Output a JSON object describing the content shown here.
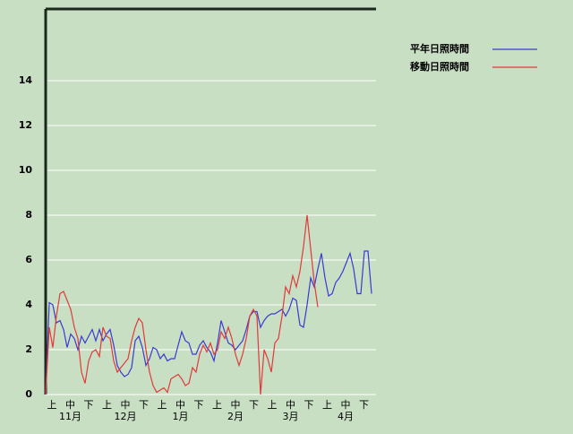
{
  "chart_data": {
    "type": "line",
    "xtick_labels": [
      "上",
      "中",
      "下",
      "上",
      "中",
      "下",
      "上",
      "中",
      "下",
      "上",
      "中",
      "下",
      "上",
      "中",
      "下",
      "上",
      "中",
      "下"
    ],
    "month_labels": [
      "11月",
      "12月",
      "1月",
      "2月",
      "3月",
      "4月"
    ],
    "ylim": [
      0,
      17.2
    ],
    "yticks": [
      0,
      2,
      4,
      6,
      8,
      10,
      12,
      14
    ],
    "grid": true,
    "legend": "top-right",
    "series": [
      {
        "name": "平年日照時間",
        "color": "#3a3ad0",
        "values": [
          0,
          4.1,
          4.0,
          3.2,
          3.3,
          2.9,
          2.1,
          2.7,
          2.5,
          2.0,
          2.6,
          2.3,
          2.6,
          2.9,
          2.4,
          2.9,
          2.4,
          2.7,
          2.9,
          2.2,
          1.3,
          1.0,
          0.8,
          0.9,
          1.2,
          2.4,
          2.6,
          2.1,
          1.3,
          1.6,
          2.1,
          2.0,
          1.6,
          1.8,
          1.5,
          1.6,
          1.6,
          2.2,
          2.8,
          2.4,
          2.3,
          1.8,
          1.8,
          2.2,
          2.4,
          2.1,
          1.9,
          1.5,
          2.3,
          3.3,
          2.8,
          2.3,
          2.2,
          2.0,
          2.2,
          2.4,
          2.9,
          3.5,
          3.7,
          3.7,
          3.0,
          3.3,
          3.5,
          3.6,
          3.6,
          3.7,
          3.8,
          3.5,
          3.8,
          4.3,
          4.2,
          3.1,
          3.0,
          4.0,
          5.2,
          4.8,
          5.6,
          6.3,
          5.2,
          4.4,
          4.5,
          5.0,
          5.2,
          5.5,
          5.9,
          6.3,
          5.6,
          4.5,
          4.5,
          6.4,
          6.4,
          4.5
        ]
      },
      {
        "name": "移動日照時間",
        "color": "#e03a3a",
        "values": [
          0,
          3.0,
          2.1,
          3.5,
          4.5,
          4.6,
          4.2,
          3.8,
          3.0,
          2.5,
          1.0,
          0.5,
          1.5,
          1.9,
          2.0,
          1.7,
          3.0,
          2.6,
          2.5,
          1.5,
          1.0,
          1.2,
          1.4,
          1.6,
          2.4,
          3.0,
          3.4,
          3.2,
          2.0,
          1.0,
          0.4,
          0.1,
          0.2,
          0.3,
          0.1,
          0.7,
          0.8,
          0.9,
          0.7,
          0.4,
          0.5,
          1.2,
          1.0,
          1.8,
          2.2,
          1.9,
          2.3,
          1.8,
          2.0,
          2.8,
          2.5,
          3.0,
          2.5,
          1.8,
          1.3,
          1.8,
          2.5,
          3.5,
          3.8,
          3.5,
          0.0,
          2.0,
          1.6,
          1.0,
          2.3,
          2.5,
          3.5,
          4.8,
          4.5,
          5.3,
          4.8,
          5.5,
          6.6,
          8.0,
          6.5,
          5.0,
          3.9,
          null,
          null,
          null,
          null,
          null,
          null,
          null,
          null,
          null,
          null,
          null,
          null,
          null,
          null,
          null
        ]
      }
    ]
  }
}
